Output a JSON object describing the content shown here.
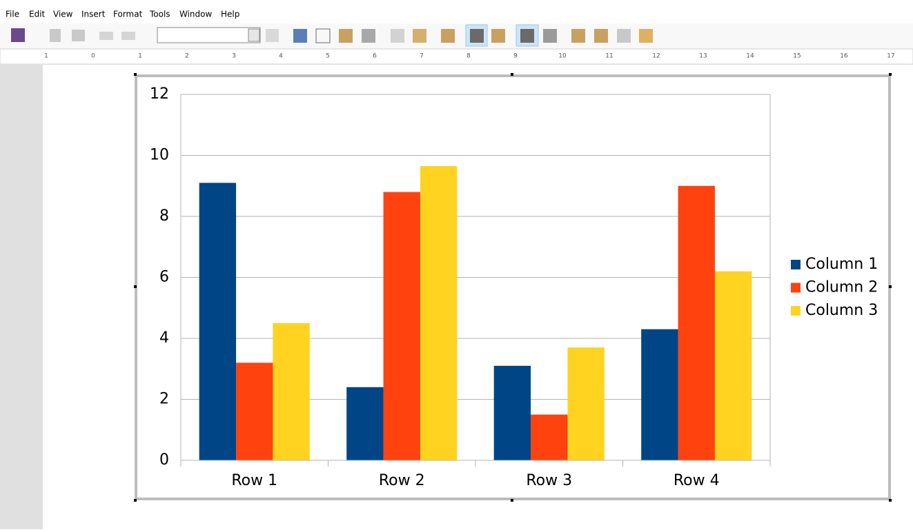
{
  "menu": [
    "File",
    "Edit",
    "View",
    "Insert",
    "Format",
    "Tools",
    "Window",
    "Help"
  ],
  "ruler": [
    1,
    0,
    1,
    2,
    3,
    4,
    5,
    6,
    7,
    8,
    9,
    10,
    11,
    12,
    13,
    14,
    15,
    16,
    17
  ],
  "chart_data": {
    "type": "bar",
    "categories": [
      "Row 1",
      "Row 2",
      "Row 3",
      "Row 4"
    ],
    "series": [
      {
        "name": "Column 1",
        "color": "#004586",
        "values": [
          9.1,
          2.4,
          3.1,
          4.3
        ]
      },
      {
        "name": "Column 2",
        "color": "#ff420e",
        "values": [
          3.2,
          8.8,
          1.5,
          9.0
        ]
      },
      {
        "name": "Column 3",
        "color": "#ffd320",
        "values": [
          4.5,
          9.65,
          3.7,
          6.2
        ]
      }
    ],
    "ylim": [
      0,
      12
    ],
    "yticks": [
      0,
      2,
      4,
      6,
      8,
      10,
      12
    ],
    "grid": true,
    "legend": "right"
  }
}
